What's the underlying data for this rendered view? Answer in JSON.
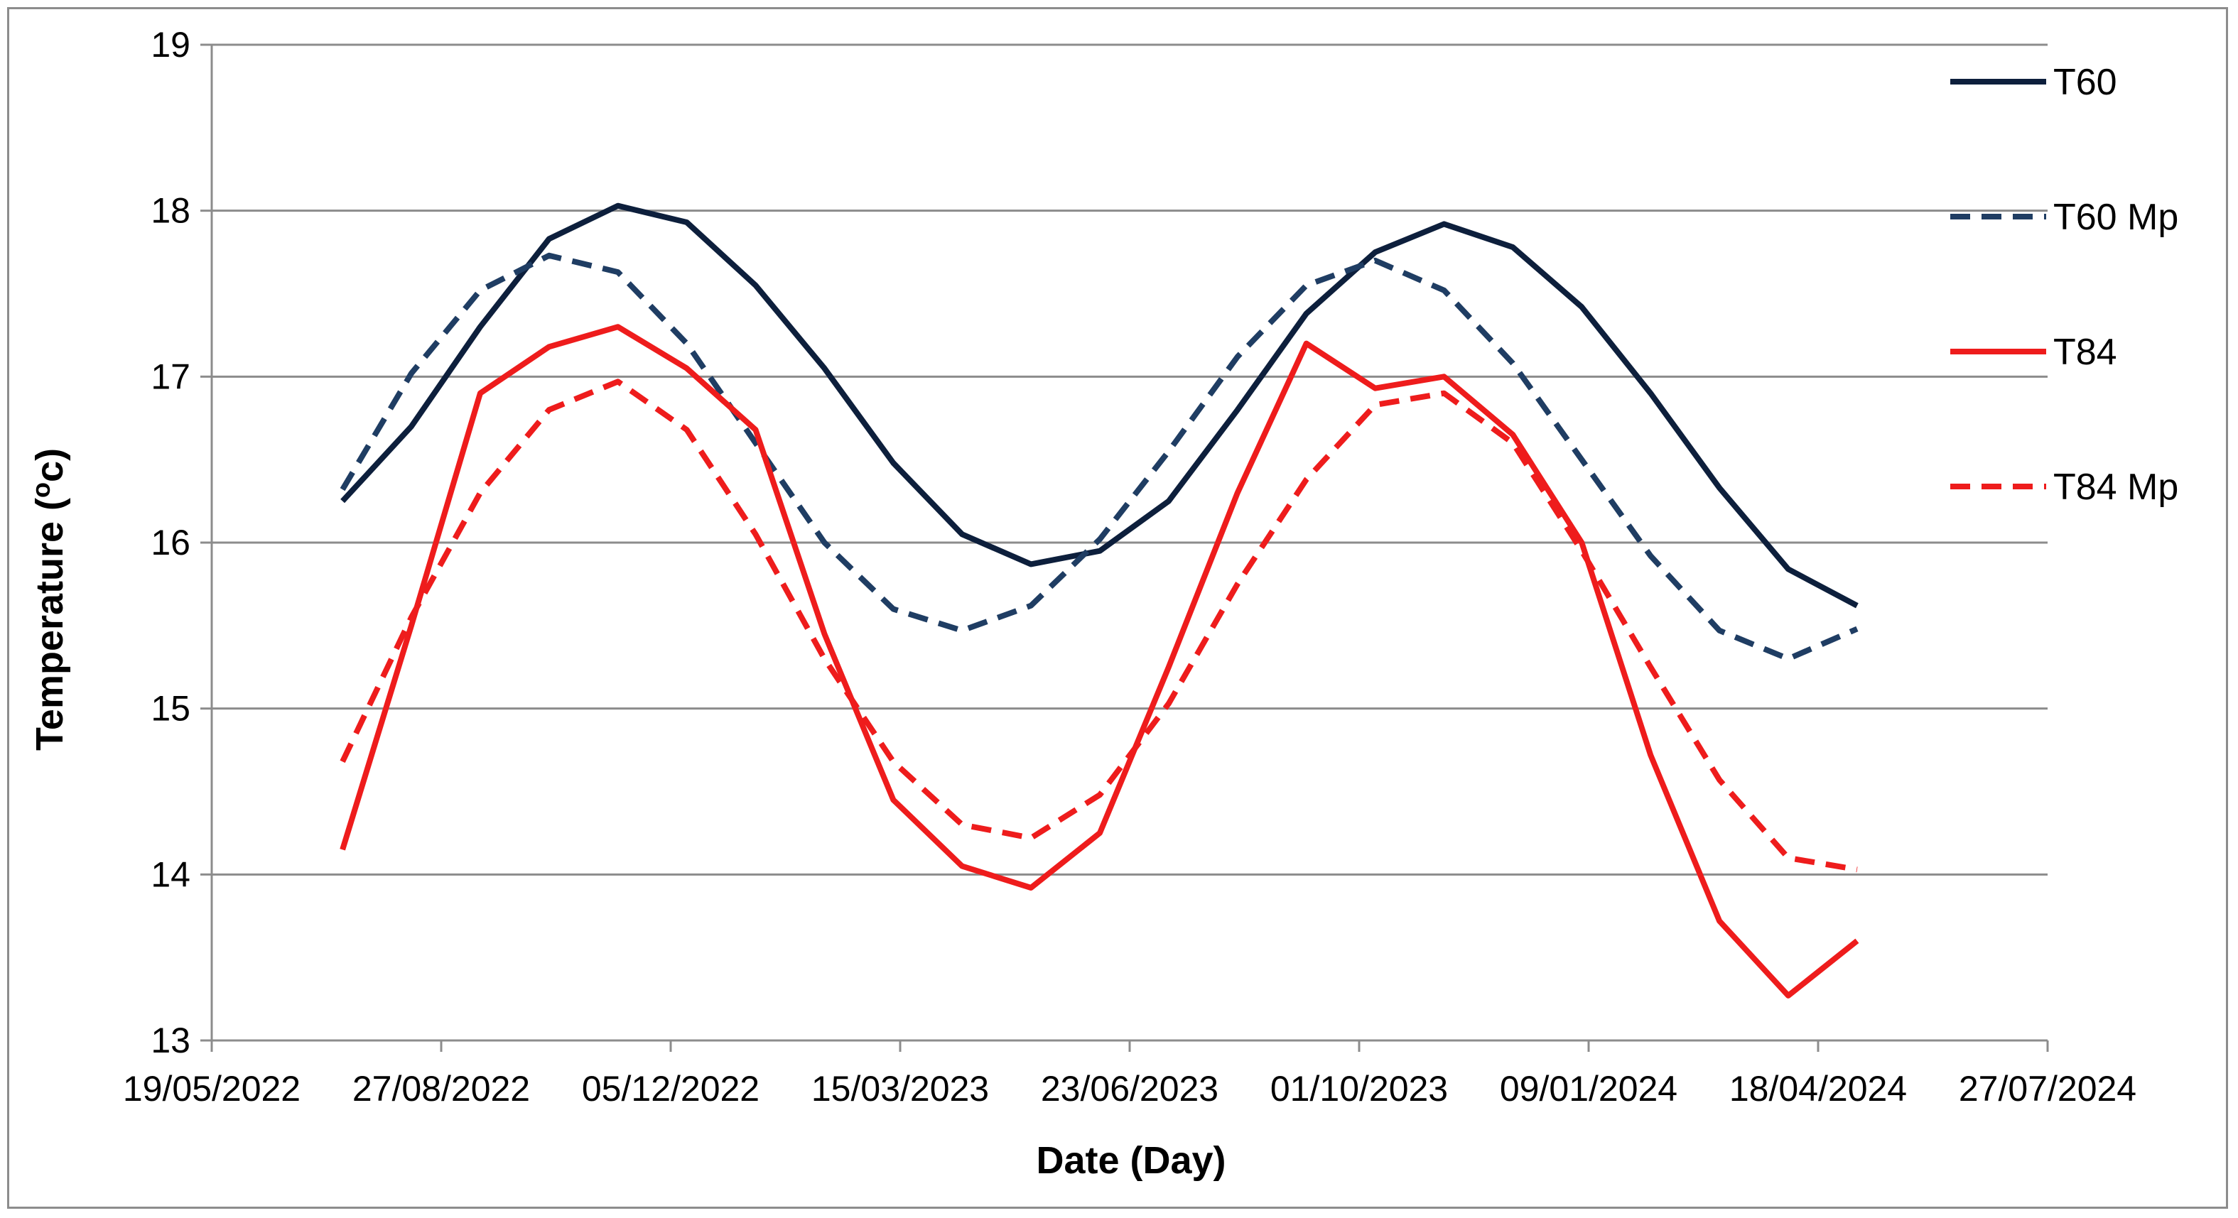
{
  "chart_data": {
    "type": "line",
    "title": "",
    "xlabel": "Date (Day)",
    "ylabel": "Temperature (°c)",
    "ylabel_main": "Temperature (",
    "ylabel_degree": "o",
    "ylabel_unit": "c)",
    "ylim": [
      13,
      19
    ],
    "y_ticks": [
      13,
      14,
      15,
      16,
      17,
      18,
      19
    ],
    "x_ticks": [
      "19/05/2022",
      "27/08/2022",
      "05/12/2022",
      "15/03/2023",
      "23/06/2023",
      "01/10/2023",
      "09/01/2024",
      "18/04/2024",
      "27/07/2024"
    ],
    "x": [
      "15/07/2022",
      "14/08/2022",
      "13/09/2022",
      "13/10/2022",
      "12/11/2022",
      "12/12/2022",
      "11/01/2023",
      "10/02/2023",
      "12/03/2023",
      "11/04/2023",
      "11/05/2023",
      "10/06/2023",
      "10/07/2023",
      "09/08/2023",
      "08/09/2023",
      "08/10/2023",
      "07/11/2023",
      "07/12/2023",
      "06/01/2024",
      "05/02/2024",
      "06/03/2024",
      "05/04/2024",
      "05/05/2024"
    ],
    "grid": true,
    "legend_position": "right",
    "series": [
      {
        "name": "T60",
        "color": "#0d1f3c",
        "dash": "solid",
        "values": [
          16.25,
          16.7,
          17.3,
          17.83,
          18.03,
          17.93,
          17.55,
          17.05,
          16.48,
          16.05,
          15.87,
          15.95,
          16.25,
          16.8,
          17.38,
          17.75,
          17.92,
          17.78,
          17.42,
          16.9,
          16.33,
          15.84,
          15.62
        ]
      },
      {
        "name": "T60 Mp",
        "color": "#1f3d63",
        "dash": "dashed",
        "values": [
          16.32,
          17.02,
          17.52,
          17.73,
          17.63,
          17.2,
          16.6,
          16.0,
          15.6,
          15.47,
          15.62,
          16.02,
          16.55,
          17.12,
          17.55,
          17.7,
          17.52,
          17.08,
          16.5,
          15.92,
          15.47,
          15.3,
          15.48
        ]
      },
      {
        "name": "T84",
        "color": "#ee1c1c",
        "dash": "solid",
        "values": [
          14.15,
          15.5,
          16.9,
          17.18,
          17.3,
          17.05,
          16.68,
          15.45,
          14.45,
          14.05,
          13.92,
          14.25,
          15.25,
          16.3,
          17.2,
          16.93,
          17.0,
          16.65,
          16.0,
          14.72,
          13.72,
          13.27,
          13.6
        ]
      },
      {
        "name": "T84 Mp",
        "color": "#ee1c1c",
        "dash": "dashed",
        "values": [
          14.68,
          15.55,
          16.3,
          16.8,
          16.97,
          16.68,
          16.05,
          15.3,
          14.68,
          14.3,
          14.22,
          14.48,
          15.03,
          15.75,
          16.38,
          16.83,
          16.9,
          16.6,
          15.95,
          15.25,
          14.57,
          14.1,
          14.03
        ]
      }
    ]
  }
}
